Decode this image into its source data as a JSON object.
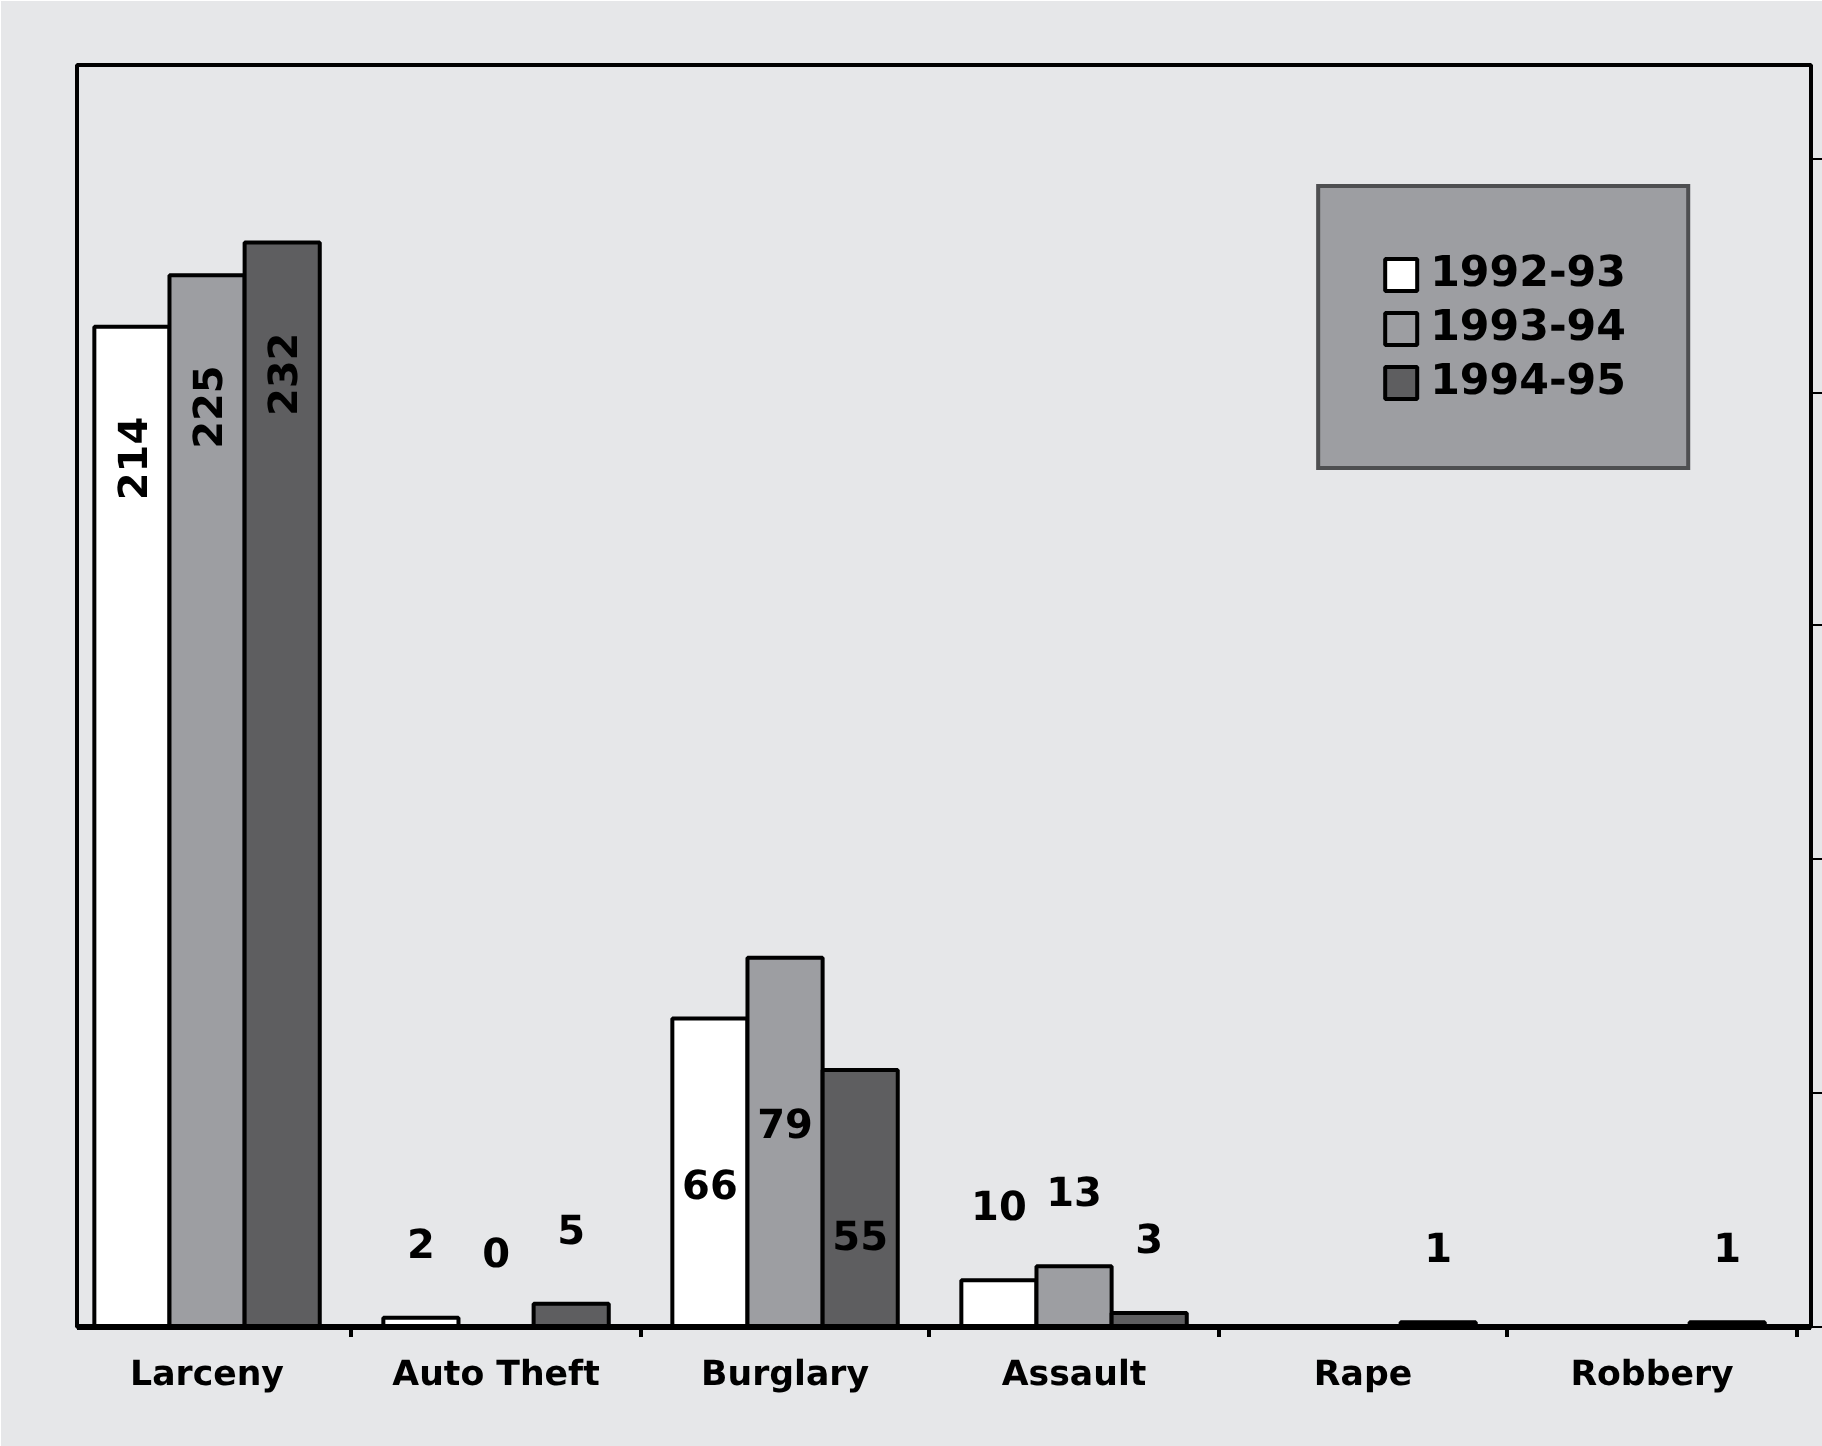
{
  "chart_data": {
    "type": "bar",
    "categories": [
      "Larceny",
      "Auto Theft",
      "Burglary",
      "Assault",
      "Rape",
      "Robbery"
    ],
    "series": [
      {
        "name": "1992-93",
        "color": "#ffffff",
        "values": [
          214,
          2,
          66,
          10,
          0,
          0
        ],
        "value_labels": [
          "214",
          "2",
          "66",
          "10",
          null,
          null
        ]
      },
      {
        "name": "1993-94",
        "color": "#9d9ea2",
        "values": [
          225,
          0,
          79,
          13,
          0,
          0
        ],
        "value_labels": [
          "225",
          "0",
          "79",
          "13",
          null,
          null
        ]
      },
      {
        "name": "1994-95",
        "color": "#5e5e60",
        "values": [
          232,
          5,
          55,
          3,
          1,
          1
        ],
        "value_labels": [
          "232",
          "5",
          "55",
          "3",
          "1",
          "1"
        ]
      }
    ],
    "ylim": [
      0,
      270
    ],
    "yticks": [
      {
        "value": 0,
        "label": null
      },
      {
        "value": 50,
        "label": null
      },
      {
        "value": 100,
        "label": null
      },
      {
        "value": 150,
        "label": null
      },
      {
        "value": 200,
        "label": null
      },
      {
        "value": 250,
        "label": null
      }
    ],
    "legend": "top right",
    "grid": false
  }
}
